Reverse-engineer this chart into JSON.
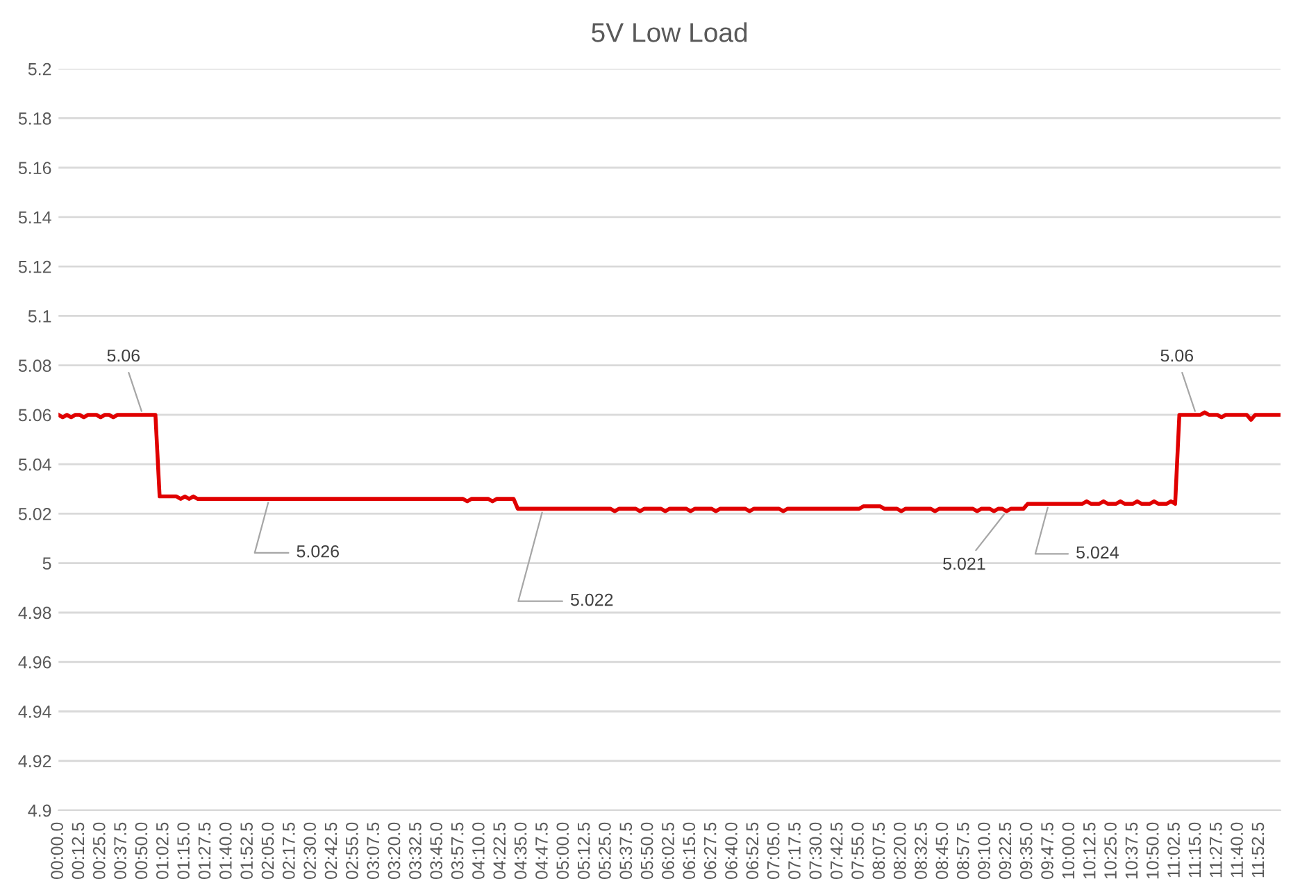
{
  "chart_data": {
    "type": "line",
    "title": "5V Low Load",
    "color": "#e00000",
    "grid": "y",
    "marker": "none",
    "line_style": "solid",
    "categories": [
      "00:00.0",
      null,
      null,
      null,
      null,
      "00:12.5",
      null,
      null,
      null,
      null,
      "00:25.0",
      null,
      null,
      null,
      null,
      "00:37.5",
      null,
      null,
      null,
      null,
      "00:50.0",
      null,
      null,
      null,
      null,
      "01:02.5",
      null,
      null,
      null,
      null,
      "01:15.0",
      null,
      null,
      null,
      null,
      "01:27.5",
      null,
      null,
      null,
      null,
      "01:40.0",
      null,
      null,
      null,
      null,
      "01:52.5",
      null,
      null,
      null,
      null,
      "02:05.0",
      null,
      null,
      null,
      null,
      "02:17.5",
      null,
      null,
      null,
      null,
      "02:30.0",
      null,
      null,
      null,
      null,
      "02:42.5",
      null,
      null,
      null,
      null,
      "02:55.0",
      null,
      null,
      null,
      null,
      "03:07.5",
      null,
      null,
      null,
      null,
      "03:20.0",
      null,
      null,
      null,
      null,
      "03:32.5",
      null,
      null,
      null,
      null,
      "03:45.0",
      null,
      null,
      null,
      null,
      "03:57.5",
      null,
      null,
      null,
      null,
      "04:10.0",
      null,
      null,
      null,
      null,
      "04:22.5",
      null,
      null,
      null,
      null,
      "04:35.0",
      null,
      null,
      null,
      null,
      "04:47.5",
      null,
      null,
      null,
      null,
      "05:00.0",
      null,
      null,
      null,
      null,
      "05:12.5",
      null,
      null,
      null,
      null,
      "05:25.0",
      null,
      null,
      null,
      null,
      "05:37.5",
      null,
      null,
      null,
      null,
      "05:50.0",
      null,
      null,
      null,
      null,
      "06:02.5",
      null,
      null,
      null,
      null,
      "06:15.0",
      null,
      null,
      null,
      null,
      "06:27.5",
      null,
      null,
      null,
      null,
      "06:40.0",
      null,
      null,
      null,
      null,
      "06:52.5",
      null,
      null,
      null,
      null,
      "07:05.0",
      null,
      null,
      null,
      null,
      "07:17.5",
      null,
      null,
      null,
      null,
      "07:30.0",
      null,
      null,
      null,
      null,
      "07:42.5",
      null,
      null,
      null,
      null,
      "07:55.0",
      null,
      null,
      null,
      null,
      "08:07.5",
      null,
      null,
      null,
      null,
      "08:20.0",
      null,
      null,
      null,
      null,
      "08:32.5",
      null,
      null,
      null,
      null,
      "08:45.0",
      null,
      null,
      null,
      null,
      "08:57.5",
      null,
      null,
      null,
      null,
      "09:10.0",
      null,
      null,
      null,
      null,
      "09:22.5",
      null,
      null,
      null,
      null,
      "09:35.0",
      null,
      null,
      null,
      null,
      "09:47.5",
      null,
      null,
      null,
      null,
      "10:00.0",
      null,
      null,
      null,
      null,
      "10:12.5",
      null,
      null,
      null,
      null,
      "10:25.0",
      null,
      null,
      null,
      null,
      "10:37.5",
      null,
      null,
      null,
      null,
      "10:50.0",
      null,
      null,
      null,
      null,
      "11:02.5",
      null,
      null,
      null,
      null,
      "11:15.0",
      null,
      null,
      null,
      null,
      "11:27.5",
      null,
      null,
      null,
      null,
      "11:40.0",
      null,
      null,
      null,
      null,
      "11:52.5",
      null,
      null,
      null,
      null,
      null
    ],
    "values": [
      5.06,
      5.059,
      5.06,
      5.059,
      5.06,
      5.06,
      5.059,
      5.06,
      5.06,
      5.06,
      5.059,
      5.06,
      5.06,
      5.059,
      5.06,
      5.06,
      5.06,
      5.06,
      5.06,
      5.06,
      5.06,
      5.06,
      5.06,
      5.06,
      5.027,
      5.027,
      5.027,
      5.027,
      5.027,
      5.026,
      5.027,
      5.026,
      5.027,
      5.026,
      5.026,
      5.026,
      5.026,
      5.026,
      5.026,
      5.026,
      5.026,
      5.026,
      5.026,
      5.026,
      5.026,
      5.026,
      5.026,
      5.026,
      5.026,
      5.026,
      5.026,
      5.026,
      5.026,
      5.026,
      5.026,
      5.026,
      5.026,
      5.026,
      5.026,
      5.026,
      5.026,
      5.026,
      5.026,
      5.026,
      5.026,
      5.026,
      5.026,
      5.026,
      5.026,
      5.026,
      5.026,
      5.026,
      5.026,
      5.026,
      5.026,
      5.026,
      5.026,
      5.026,
      5.026,
      5.026,
      5.026,
      5.026,
      5.026,
      5.026,
      5.026,
      5.026,
      5.026,
      5.026,
      5.026,
      5.026,
      5.026,
      5.026,
      5.026,
      5.026,
      5.026,
      5.026,
      5.026,
      5.025,
      5.026,
      5.026,
      5.026,
      5.026,
      5.026,
      5.025,
      5.026,
      5.026,
      5.026,
      5.026,
      5.026,
      5.022,
      5.022,
      5.022,
      5.022,
      5.022,
      5.022,
      5.022,
      5.022,
      5.022,
      5.022,
      5.022,
      5.022,
      5.022,
      5.022,
      5.022,
      5.022,
      5.022,
      5.022,
      5.022,
      5.022,
      5.022,
      5.022,
      5.022,
      5.021,
      5.022,
      5.022,
      5.022,
      5.022,
      5.022,
      5.021,
      5.022,
      5.022,
      5.022,
      5.022,
      5.022,
      5.021,
      5.022,
      5.022,
      5.022,
      5.022,
      5.022,
      5.021,
      5.022,
      5.022,
      5.022,
      5.022,
      5.022,
      5.021,
      5.022,
      5.022,
      5.022,
      5.022,
      5.022,
      5.022,
      5.022,
      5.021,
      5.022,
      5.022,
      5.022,
      5.022,
      5.022,
      5.022,
      5.022,
      5.021,
      5.022,
      5.022,
      5.022,
      5.022,
      5.022,
      5.022,
      5.022,
      5.022,
      5.022,
      5.022,
      5.022,
      5.022,
      5.022,
      5.022,
      5.022,
      5.022,
      5.022,
      5.022,
      5.023,
      5.023,
      5.023,
      5.023,
      5.023,
      5.022,
      5.022,
      5.022,
      5.022,
      5.021,
      5.022,
      5.022,
      5.022,
      5.022,
      5.022,
      5.022,
      5.022,
      5.021,
      5.022,
      5.022,
      5.022,
      5.022,
      5.022,
      5.022,
      5.022,
      5.022,
      5.022,
      5.021,
      5.022,
      5.022,
      5.022,
      5.021,
      5.022,
      5.022,
      5.021,
      5.022,
      5.022,
      5.022,
      5.022,
      5.024,
      5.024,
      5.024,
      5.024,
      5.024,
      5.024,
      5.024,
      5.024,
      5.024,
      5.024,
      5.024,
      5.024,
      5.024,
      5.024,
      5.025,
      5.024,
      5.024,
      5.024,
      5.025,
      5.024,
      5.024,
      5.024,
      5.025,
      5.024,
      5.024,
      5.024,
      5.025,
      5.024,
      5.024,
      5.024,
      5.025,
      5.024,
      5.024,
      5.024,
      5.025,
      5.024,
      5.06,
      5.06,
      5.06,
      5.06,
      5.06,
      5.06,
      5.061,
      5.06,
      5.06,
      5.06,
      5.059,
      5.06,
      5.06,
      5.06,
      5.06,
      5.06,
      5.06,
      5.058,
      5.06,
      5.06,
      5.06,
      5.06,
      5.06,
      5.06,
      5.06
    ],
    "ylim": [
      4.9,
      5.2
    ],
    "yticks": [
      4.9,
      4.92,
      4.94,
      4.96,
      4.98,
      5,
      5.02,
      5.04,
      5.06,
      5.08,
      5.1,
      5.12,
      5.14,
      5.16,
      5.18,
      5.2
    ],
    "annotations": [
      {
        "text": "5.06",
        "x": "00:50.0",
        "y": 5.06
      },
      {
        "text": "5.026",
        "x": "02:05.0",
        "y": 5.026
      },
      {
        "text": "5.022",
        "x": "04:47.5",
        "y": 5.022
      },
      {
        "text": "5.021",
        "x": "09:22.5",
        "y": 5.021
      },
      {
        "text": "5.024",
        "x": "09:47.5",
        "y": 5.024
      },
      {
        "text": "5.06",
        "x": "11:15.0",
        "y": 5.06
      }
    ]
  }
}
